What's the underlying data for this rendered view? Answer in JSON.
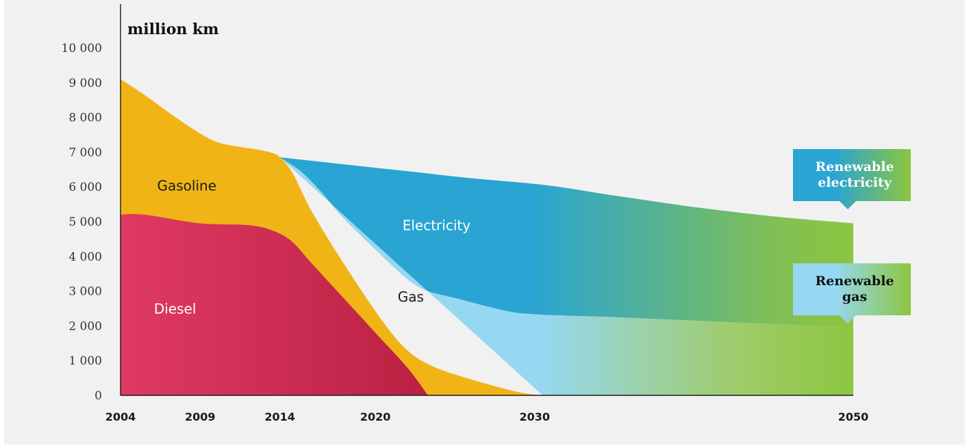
{
  "chart_data": {
    "type": "area",
    "unit_label": "million km",
    "y_ticks": [
      0,
      1000,
      2000,
      3000,
      4000,
      5000,
      6000,
      7000,
      8000,
      9000,
      10000
    ],
    "y_tick_labels": [
      "0",
      "1 000",
      "2 000",
      "3 000",
      "4 000",
      "5 000",
      "6 000",
      "7 000",
      "8 000",
      "9 000",
      "10 000"
    ],
    "ylim": [
      0,
      10000
    ],
    "xlim": [
      2004,
      2050
    ],
    "x_ticks": [
      2004,
      2009,
      2014,
      2020,
      2030,
      2050
    ],
    "x_tick_labels": [
      "2004",
      "2009",
      "2014",
      "2020",
      "2030",
      "2050"
    ],
    "series": [
      {
        "name": "Diesel",
        "color": "#e03a62",
        "points": [
          [
            2004,
            5200
          ],
          [
            2005.5,
            5200
          ],
          [
            2009,
            4950
          ],
          [
            2012,
            4900
          ],
          [
            2013.5,
            4750
          ],
          [
            2014.7,
            4450
          ],
          [
            2016,
            3800
          ],
          [
            2018,
            2800
          ],
          [
            2020,
            1800
          ],
          [
            2022,
            800
          ],
          [
            2023.3,
            0
          ]
        ]
      },
      {
        "name": "Gasoline",
        "color": "#f0b416",
        "points": [
          [
            2004,
            9100
          ],
          [
            2005.5,
            8650
          ],
          [
            2007,
            8150
          ],
          [
            2008.6,
            7650
          ],
          [
            2010,
            7300
          ],
          [
            2011.5,
            7150
          ],
          [
            2012.5,
            7080
          ],
          [
            2013.5,
            6980
          ],
          [
            2014,
            6850
          ],
          [
            2014.8,
            6400
          ],
          [
            2016,
            5300
          ],
          [
            2018,
            3800
          ],
          [
            2020.5,
            2100
          ],
          [
            2022,
            1300
          ],
          [
            2023.3,
            900
          ],
          [
            2025,
            600
          ],
          [
            2028,
            200
          ],
          [
            2029.5,
            50
          ],
          [
            2030.5,
            0
          ]
        ]
      },
      {
        "name": "Gas",
        "color": "#96d8f2",
        "points": [
          [
            2014,
            6850
          ],
          [
            2015.3,
            6450
          ],
          [
            2016.5,
            5900
          ],
          [
            2018,
            5100
          ],
          [
            2020,
            4200
          ],
          [
            2022,
            3350
          ],
          [
            2023.3,
            3000
          ],
          [
            2025,
            2800
          ],
          [
            2028,
            2450
          ],
          [
            2030,
            2330
          ],
          [
            2035,
            2250
          ],
          [
            2040,
            2150
          ],
          [
            2045,
            2050
          ],
          [
            2049.3,
            1950
          ],
          [
            2050,
            1950
          ],
          [
            2050,
            0
          ],
          [
            2030.5,
            0
          ]
        ]
      },
      {
        "name": "Electricity",
        "color": "#2aa4d2",
        "points": [
          [
            2014,
            6850
          ],
          [
            2018,
            6650
          ],
          [
            2022,
            6450
          ],
          [
            2026,
            6250
          ],
          [
            2030.7,
            6050
          ],
          [
            2035,
            5750
          ],
          [
            2040,
            5420
          ],
          [
            2045,
            5150
          ],
          [
            2050,
            4950
          ]
        ]
      }
    ],
    "annotations": [
      {
        "text": "Gasoline",
        "x": 2006.3,
        "y": 5900
      },
      {
        "text": "Diesel",
        "x": 2006.1,
        "y": 2350
      },
      {
        "text": "Electricity",
        "x": 2021.7,
        "y": 4750
      },
      {
        "text": "Gas",
        "x": 2021.4,
        "y": 2700
      }
    ],
    "callouts": [
      {
        "lines": [
          "Renewable",
          "electricity"
        ],
        "background": "#2aa4d2",
        "text_color": "#ffffff"
      },
      {
        "lines": [
          "Renewable",
          "gas"
        ],
        "background": "#96d8f2",
        "text_color": "#111111"
      }
    ],
    "renewable_color": "#8cc63f"
  }
}
